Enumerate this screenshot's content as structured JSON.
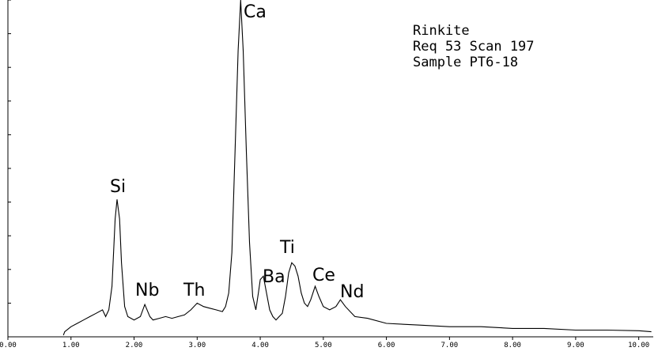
{
  "chart_data": {
    "type": "line",
    "info": [
      "Rinkite",
      "Req 53 Scan 197",
      "Sample PT6-18"
    ],
    "annotations": [
      "Ca",
      "Si",
      "Nb",
      "Th",
      "Ba",
      "Ti",
      "Ce",
      "Nd"
    ],
    "x": [
      0.88,
      0.9,
      1.0,
      1.1,
      1.2,
      1.3,
      1.4,
      1.5,
      1.55,
      1.6,
      1.65,
      1.7,
      1.73,
      1.77,
      1.8,
      1.85,
      1.9,
      2.0,
      2.1,
      2.17,
      2.25,
      2.3,
      2.4,
      2.5,
      2.6,
      2.7,
      2.8,
      2.9,
      3.0,
      3.1,
      3.2,
      3.3,
      3.4,
      3.45,
      3.5,
      3.55,
      3.6,
      3.65,
      3.69,
      3.73,
      3.78,
      3.83,
      3.88,
      3.93,
      3.97,
      4.0,
      4.05,
      4.1,
      4.15,
      4.2,
      4.25,
      4.3,
      4.35,
      4.4,
      4.45,
      4.5,
      4.55,
      4.6,
      4.65,
      4.7,
      4.75,
      4.8,
      4.87,
      4.93,
      5.0,
      5.1,
      5.2,
      5.27,
      5.35,
      5.5,
      5.7,
      6.0,
      6.5,
      7.0,
      7.5,
      8.0,
      8.5,
      9.0,
      9.5,
      10.0,
      10.2
    ],
    "series": [
      {
        "color": "#000000",
        "values": [
          0.05,
          0.15,
          0.3,
          0.4,
          0.5,
          0.6,
          0.7,
          0.8,
          0.6,
          0.8,
          1.5,
          3.5,
          4.08,
          3.5,
          2.2,
          0.9,
          0.6,
          0.5,
          0.6,
          0.96,
          0.6,
          0.5,
          0.55,
          0.6,
          0.55,
          0.6,
          0.65,
          0.8,
          1.0,
          0.9,
          0.85,
          0.8,
          0.75,
          0.9,
          1.3,
          2.5,
          5.5,
          8.5,
          10.0,
          8.5,
          5.5,
          2.8,
          1.2,
          0.8,
          1.3,
          1.7,
          1.8,
          1.3,
          0.8,
          0.6,
          0.5,
          0.6,
          0.7,
          1.2,
          1.9,
          2.2,
          2.1,
          1.8,
          1.3,
          1.0,
          0.9,
          1.1,
          1.5,
          1.2,
          0.9,
          0.8,
          0.9,
          1.1,
          0.9,
          0.6,
          0.55,
          0.4,
          0.35,
          0.3,
          0.3,
          0.25,
          0.25,
          0.2,
          0.2,
          0.18,
          0.15
        ]
      }
    ],
    "xlim": [
      0,
      10.23
    ],
    "ylim": [
      0,
      10
    ],
    "xticks": [
      {
        "value": 0,
        "label": "0.00"
      },
      {
        "value": 1,
        "label": "1.00"
      },
      {
        "value": 2,
        "label": "2.00"
      },
      {
        "value": 3,
        "label": "3.00"
      },
      {
        "value": 4,
        "label": "4.00"
      },
      {
        "value": 5,
        "label": "5.00"
      },
      {
        "value": 6,
        "label": "6.00"
      },
      {
        "value": 7,
        "label": "7.00"
      },
      {
        "value": 8,
        "label": "8.00"
      },
      {
        "value": 9,
        "label": "9.00"
      },
      {
        "value": 10,
        "label": "10.00"
      }
    ],
    "yticks": [
      1,
      2,
      3,
      4,
      5,
      6,
      7,
      8,
      9,
      10
    ]
  }
}
